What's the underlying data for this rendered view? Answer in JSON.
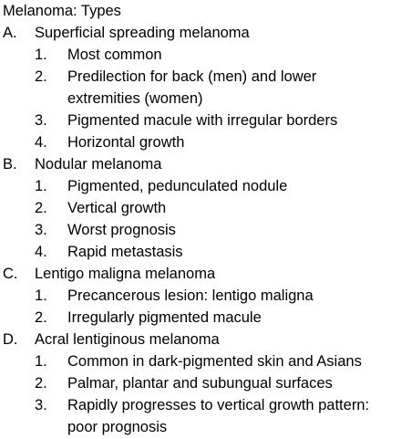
{
  "document": {
    "title": "Melanoma: Types",
    "sections": [
      {
        "marker": "A.",
        "label": "Superficial spreading melanoma",
        "items": [
          {
            "num": "1.",
            "lines": [
              "Most common"
            ]
          },
          {
            "num": "2.",
            "lines": [
              "Predilection for back (men) and lower",
              "extremities (women)"
            ]
          },
          {
            "num": "3.",
            "lines": [
              "Pigmented macule with irregular borders"
            ]
          },
          {
            "num": "4.",
            "lines": [
              "Horizontal growth"
            ]
          }
        ]
      },
      {
        "marker": "B.",
        "label": "Nodular melanoma",
        "items": [
          {
            "num": "1.",
            "lines": [
              "Pigmented, pedunculated nodule"
            ]
          },
          {
            "num": "2.",
            "lines": [
              "Vertical growth"
            ]
          },
          {
            "num": "3.",
            "lines": [
              "Worst prognosis"
            ]
          },
          {
            "num": "4.",
            "lines": [
              "Rapid metastasis"
            ]
          }
        ]
      },
      {
        "marker": "C.",
        "label": "Lentigo maligna melanoma",
        "items": [
          {
            "num": "1.",
            "lines": [
              "Precancerous lesion: lentigo maligna"
            ]
          },
          {
            "num": "2.",
            "lines": [
              "Irregularly pigmented macule"
            ]
          }
        ]
      },
      {
        "marker": "D.",
        "label": "Acral lentiginous melanoma",
        "items": [
          {
            "num": "1.",
            "lines": [
              "Common in dark-pigmented skin and Asians"
            ]
          },
          {
            "num": "2.",
            "lines": [
              "Palmar, plantar and subungual surfaces"
            ]
          },
          {
            "num": "3.",
            "lines": [
              "Rapidly progresses to vertical growth pattern:",
              "poor prognosis"
            ]
          }
        ]
      }
    ]
  }
}
